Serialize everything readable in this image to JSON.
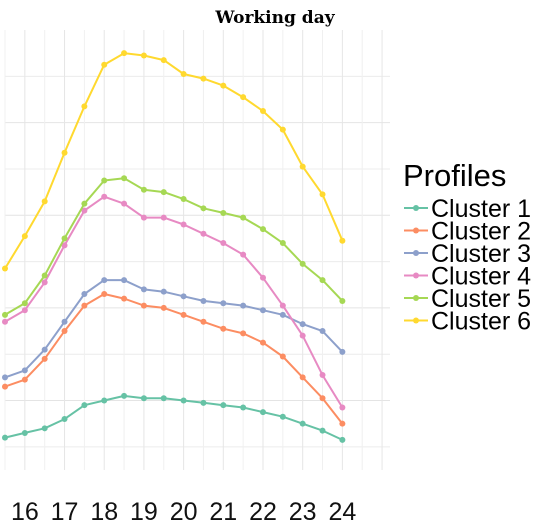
{
  "chart_data": {
    "type": "line",
    "title": "Working day",
    "xlabel": "",
    "ylabel": "",
    "x": [
      15.5,
      16,
      16.5,
      17,
      17.5,
      18,
      18.5,
      19,
      19.5,
      20,
      20.5,
      21,
      21.5,
      22,
      22.5,
      23,
      23.5,
      24
    ],
    "xticks": [
      16,
      17,
      18,
      19,
      20,
      21,
      22,
      23,
      24
    ],
    "xlim": [
      15.5,
      25.2
    ],
    "ylim": [
      0,
      0.95
    ],
    "grid": true,
    "legend_title": "Profiles",
    "legend_position": "right",
    "series": [
      {
        "name": "Cluster 1",
        "color": "#66c2a5",
        "values": [
          0.07,
          0.08,
          0.09,
          0.11,
          0.14,
          0.15,
          0.16,
          0.155,
          0.155,
          0.15,
          0.145,
          0.14,
          0.135,
          0.125,
          0.115,
          0.1,
          0.085,
          0.065
        ]
      },
      {
        "name": "Cluster 2",
        "color": "#fc8d62",
        "values": [
          0.18,
          0.195,
          0.24,
          0.3,
          0.355,
          0.38,
          0.37,
          0.355,
          0.35,
          0.335,
          0.32,
          0.305,
          0.295,
          0.275,
          0.245,
          0.2,
          0.155,
          0.1
        ]
      },
      {
        "name": "Cluster 3",
        "color": "#8da0cb",
        "values": [
          0.2,
          0.215,
          0.26,
          0.32,
          0.38,
          0.41,
          0.41,
          0.39,
          0.385,
          0.375,
          0.365,
          0.36,
          0.355,
          0.345,
          0.335,
          0.315,
          0.3,
          0.255
        ]
      },
      {
        "name": "Cluster 4",
        "color": "#e78ac3",
        "values": [
          0.32,
          0.345,
          0.405,
          0.485,
          0.56,
          0.59,
          0.575,
          0.545,
          0.545,
          0.53,
          0.51,
          0.49,
          0.465,
          0.415,
          0.355,
          0.29,
          0.205,
          0.135
        ]
      },
      {
        "name": "Cluster 5",
        "color": "#a6d854",
        "values": [
          0.335,
          0.36,
          0.42,
          0.5,
          0.575,
          0.625,
          0.63,
          0.605,
          0.6,
          0.585,
          0.565,
          0.555,
          0.545,
          0.52,
          0.49,
          0.445,
          0.41,
          0.365
        ]
      },
      {
        "name": "Cluster 6",
        "color": "#ffd92f",
        "values": [
          0.435,
          0.505,
          0.58,
          0.685,
          0.785,
          0.875,
          0.9,
          0.895,
          0.885,
          0.855,
          0.845,
          0.83,
          0.805,
          0.775,
          0.735,
          0.655,
          0.595,
          0.495
        ]
      }
    ]
  }
}
